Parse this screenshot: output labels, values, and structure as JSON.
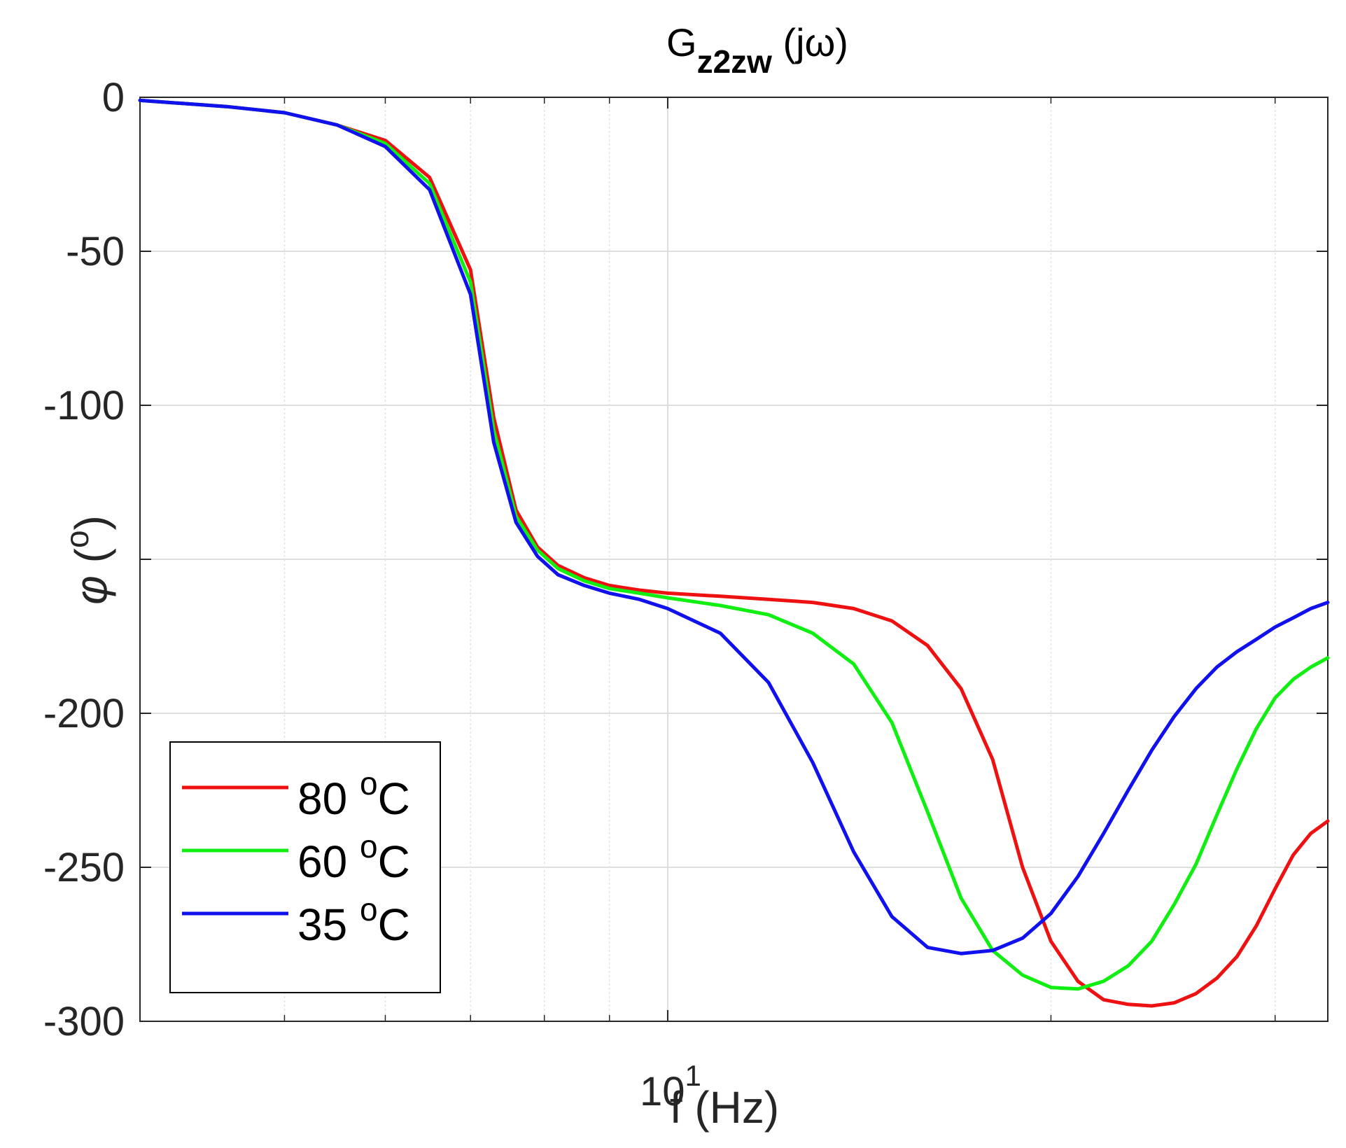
{
  "chart_data": {
    "type": "line",
    "title": {
      "main": "G",
      "subscript": "z2zw",
      "suffix": " (jω)"
    },
    "xlabel": "f (Hz)",
    "ylabel": {
      "symbol": "φ",
      "open": " (",
      "sup": "o",
      "close": ")"
    },
    "x_scale": "log",
    "xlim": [
      3.85,
      33
    ],
    "ylim": [
      -300,
      0
    ],
    "grid": true,
    "legend_location": "bottom-left",
    "y_ticks": [
      {
        "value": 0,
        "label": "0"
      },
      {
        "value": -50,
        "label": "-50"
      },
      {
        "value": -100,
        "label": "-100"
      },
      {
        "value": -150,
        "label": ""
      },
      {
        "value": -200,
        "label": "-200"
      },
      {
        "value": -250,
        "label": "-250"
      },
      {
        "value": -300,
        "label": "-300"
      }
    ],
    "x_ticks": [
      {
        "value": 10,
        "base": "10",
        "exponent": "1"
      }
    ],
    "x_minor_ticks": [
      5,
      6,
      7,
      8,
      9,
      20,
      30
    ],
    "x": [
      3.85,
      4.5,
      5.0,
      5.5,
      6.0,
      6.5,
      7.0,
      7.3,
      7.6,
      7.9,
      8.2,
      8.6,
      9.0,
      9.5,
      10.0,
      11.0,
      12.0,
      13.0,
      14.0,
      15.0,
      16.0,
      17.0,
      18.0,
      19.0,
      20.0,
      21.0,
      22.0,
      23.0,
      24.0,
      25.0,
      26.0,
      27.0,
      28.0,
      29.0,
      30.0,
      31.0,
      32.0,
      33.0
    ],
    "series": [
      {
        "name": "80",
        "color": "#ee1111",
        "values": [
          -1,
          -3,
          -5,
          -9,
          -14,
          -26,
          -56,
          -104,
          -134,
          -146,
          -152,
          -156,
          -158.5,
          -160,
          -161,
          -162,
          -163,
          -164,
          -166,
          -170,
          -178,
          -192,
          -215,
          -250,
          -274,
          -287,
          -293,
          -294.5,
          -295,
          -294,
          -291,
          -286,
          -279,
          -269,
          -257,
          -246,
          -239,
          -235
        ]
      },
      {
        "name": "60",
        "color": "#11ee11",
        "values": [
          -1,
          -3,
          -5,
          -9,
          -15,
          -28,
          -60,
          -108,
          -136,
          -147,
          -153,
          -157,
          -159.5,
          -161,
          -162.5,
          -165,
          -168,
          -174,
          -184,
          -203,
          -232,
          -260,
          -277,
          -285,
          -289,
          -289.5,
          -287,
          -282,
          -274,
          -262,
          -249,
          -233,
          -218,
          -205,
          -195,
          -189,
          -185,
          -182
        ]
      },
      {
        "name": "35",
        "color": "#1111ee",
        "values": [
          -1,
          -3,
          -5,
          -9,
          -16,
          -30,
          -64,
          -112,
          -138,
          -149,
          -155,
          -158.5,
          -161,
          -163,
          -166,
          -174,
          -190,
          -216,
          -245,
          -266,
          -276,
          -278,
          -277,
          -273,
          -265,
          -253,
          -239,
          -225,
          -212,
          -201,
          -192,
          -185,
          -180,
          -176,
          -172,
          -169,
          -166,
          -164
        ]
      }
    ],
    "legend_unit": {
      "sup": "o",
      "letter": "C"
    }
  }
}
